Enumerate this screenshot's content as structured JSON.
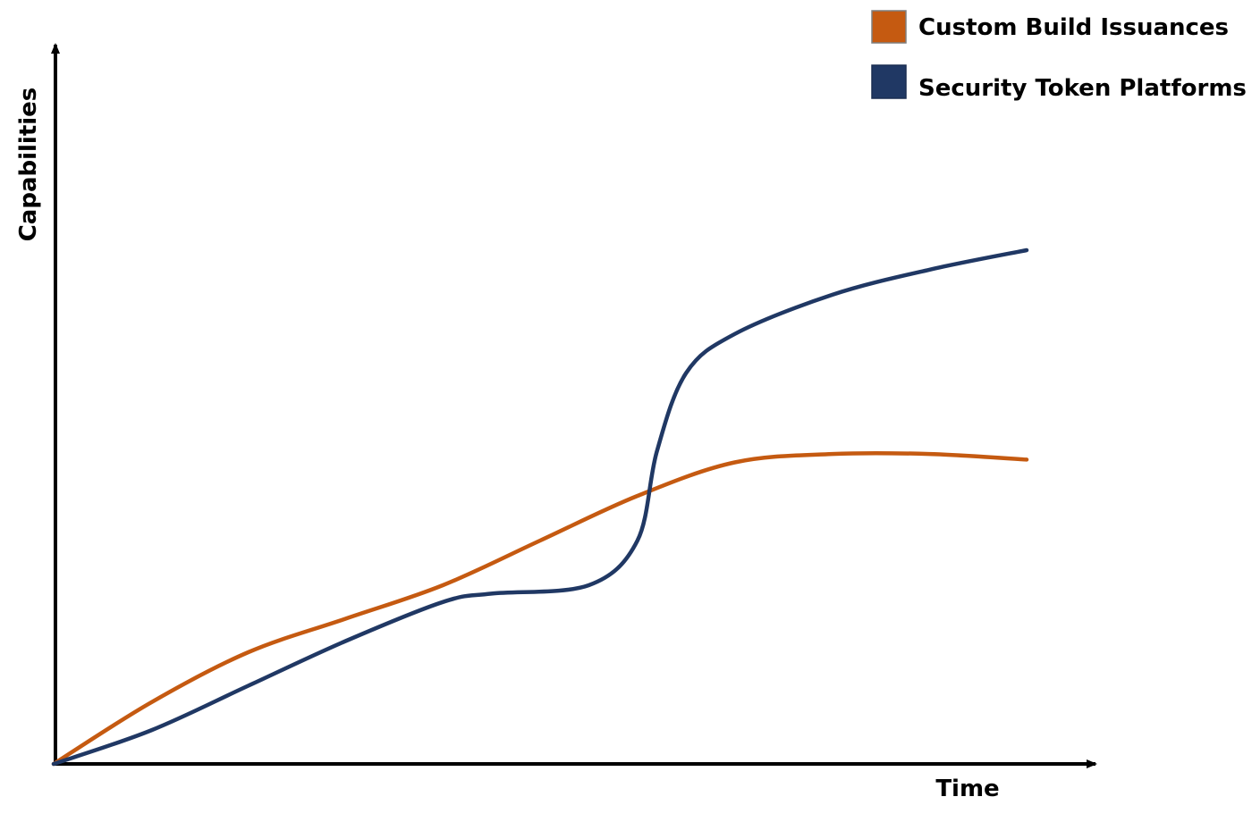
{
  "chart_data": {
    "type": "line",
    "title": "",
    "xlabel": "Time",
    "ylabel": "Capabilities",
    "xlim": [
      0,
      100
    ],
    "ylim": [
      0,
      100
    ],
    "grid": false,
    "legend_position": "top-right",
    "series": [
      {
        "name": "Custom Build Issuances",
        "color": "#C55A11",
        "x": [
          0,
          10,
          20,
          30,
          40,
          50,
          60,
          70,
          80,
          90,
          100
        ],
        "y": [
          0,
          11,
          20,
          26,
          32,
          40,
          48,
          54,
          55.5,
          55.5,
          54.5
        ]
      },
      {
        "name": "Security Token Platforms",
        "color": "#203864",
        "x": [
          0,
          10,
          20,
          30,
          40,
          45,
          55,
          60,
          62,
          65,
          70,
          80,
          90,
          100
        ],
        "y": [
          0,
          6,
          14,
          22,
          29,
          30.5,
          32,
          40,
          56,
          70,
          77,
          84,
          88.5,
          92
        ]
      }
    ]
  }
}
